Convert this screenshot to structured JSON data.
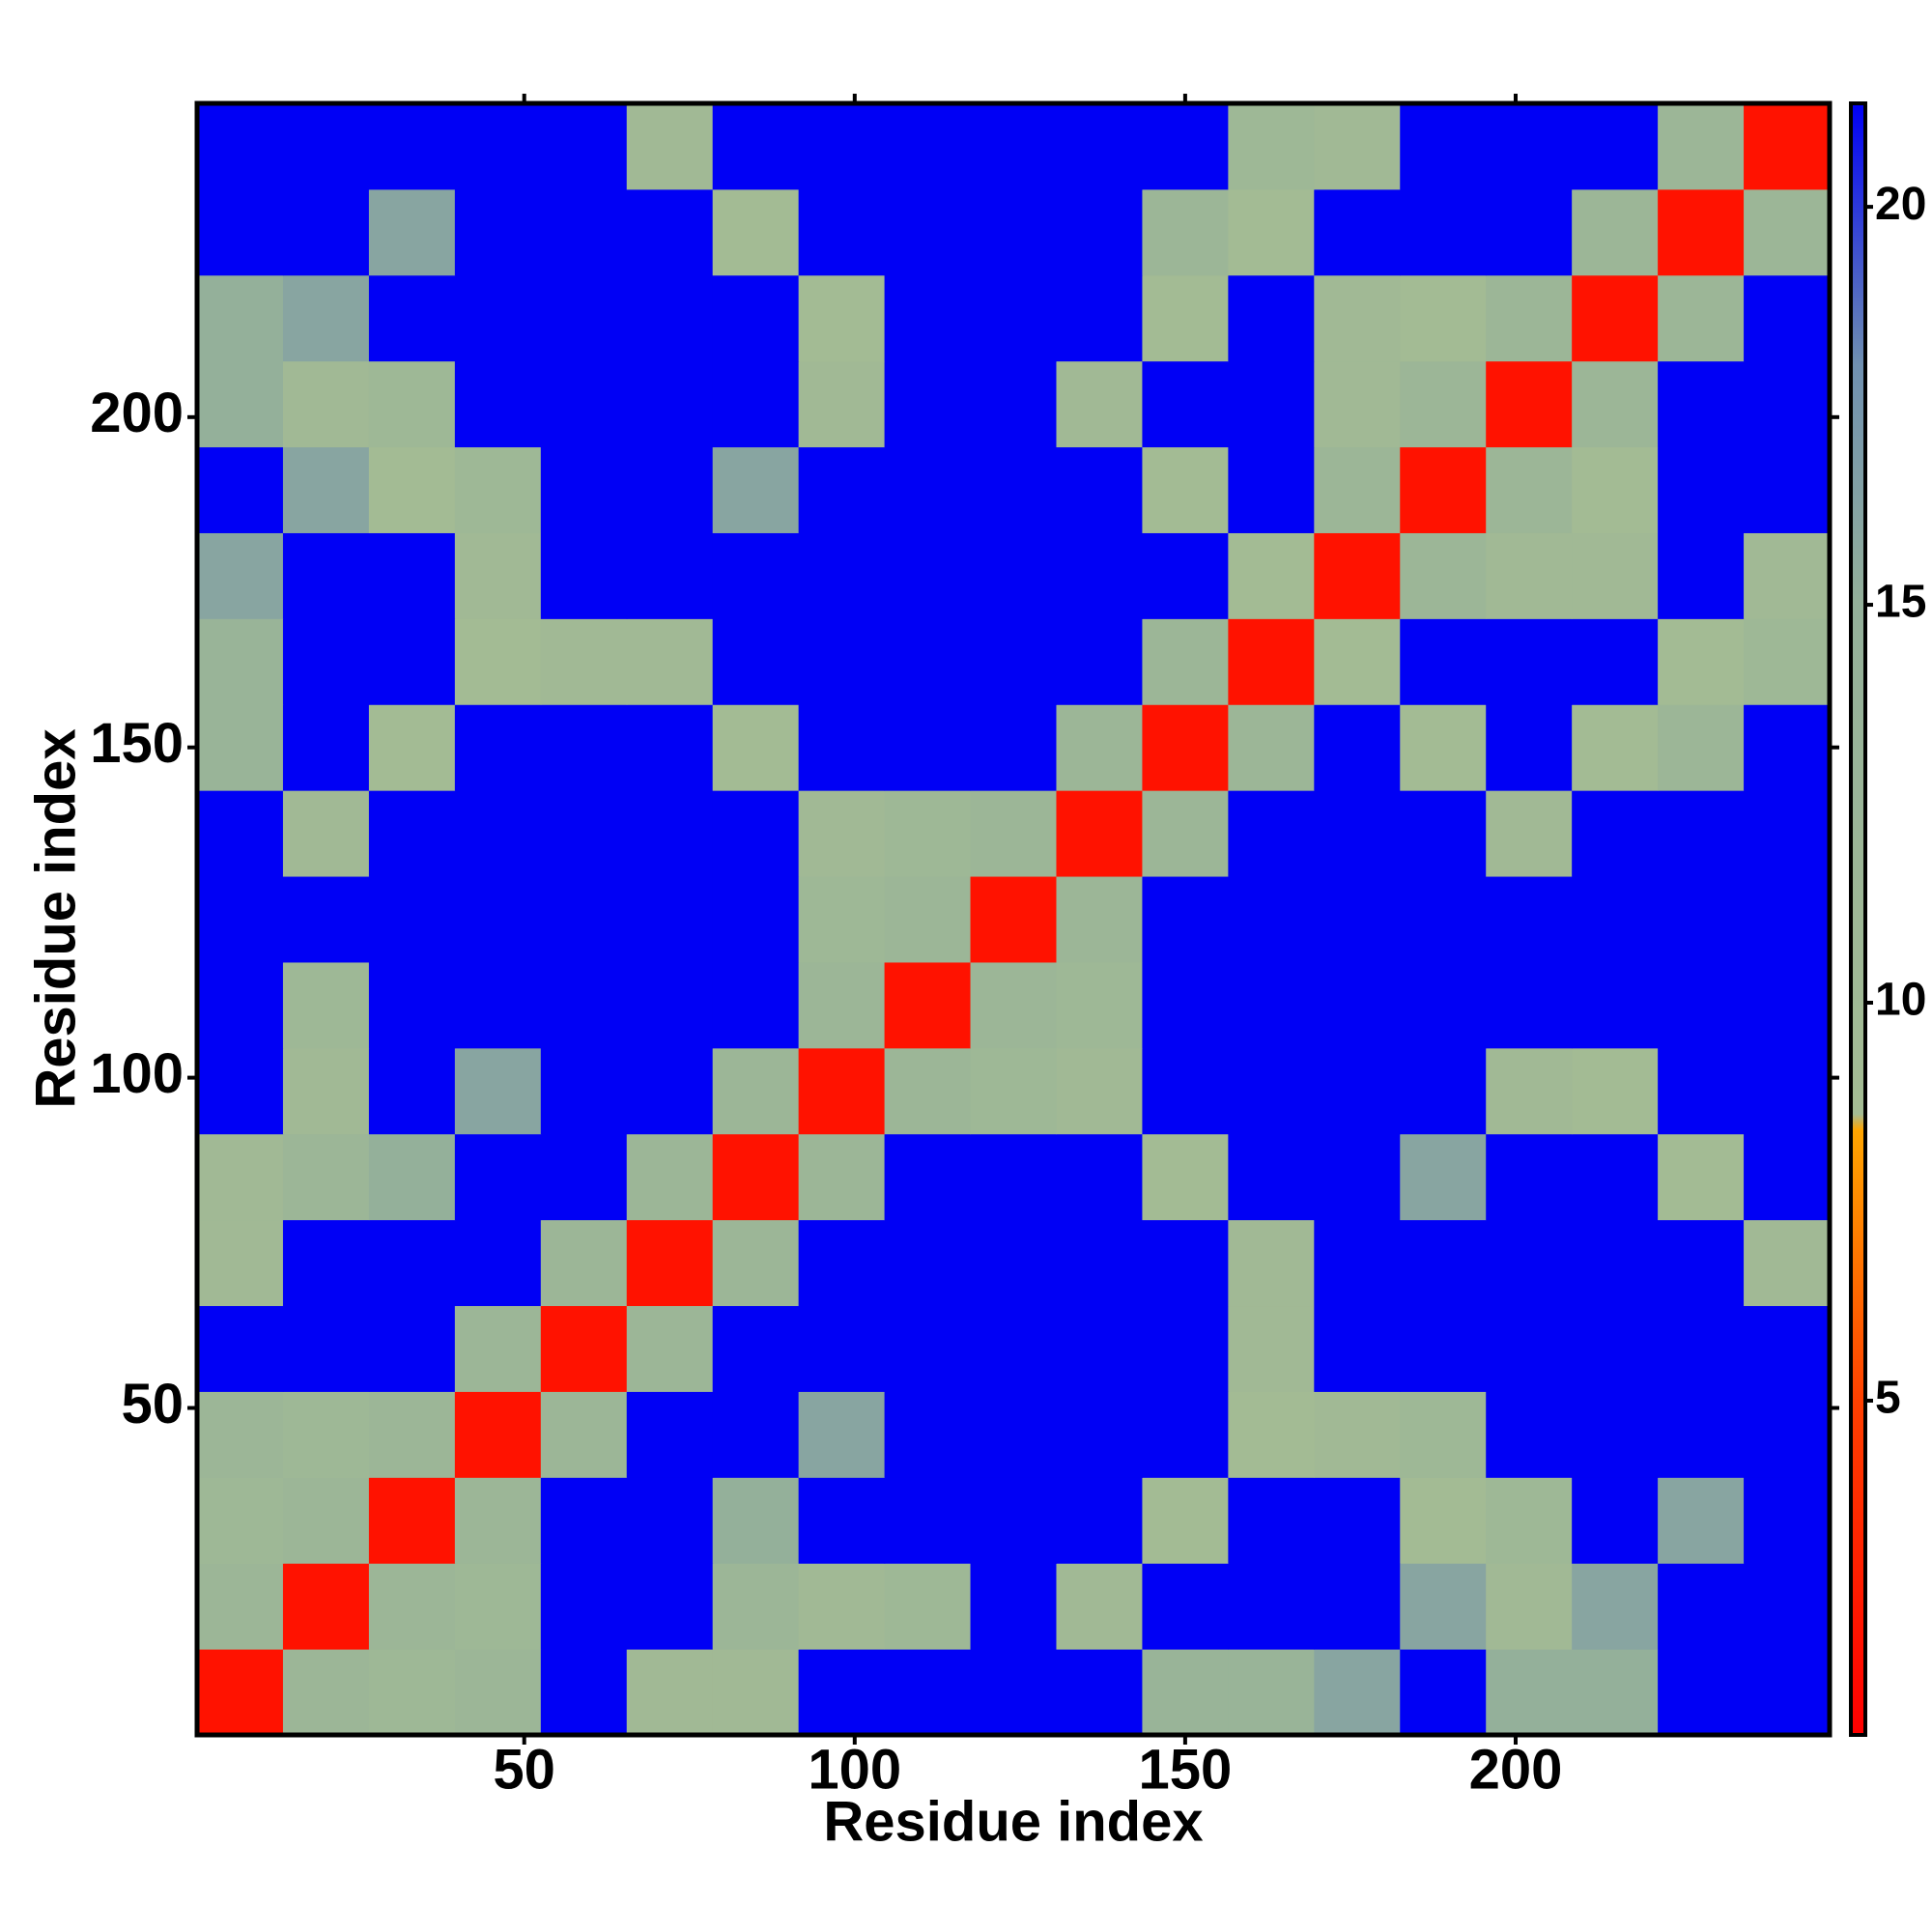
{
  "chart_data": {
    "type": "heatmap",
    "x_label": "Residue index",
    "y_label": "Residue index",
    "x": [
      7,
      20,
      33,
      46,
      59,
      72,
      85,
      98,
      111,
      124,
      137,
      150,
      163,
      176,
      189,
      202,
      215,
      228,
      241
    ],
    "y": [
      7,
      20,
      33,
      46,
      59,
      72,
      85,
      98,
      111,
      124,
      137,
      150,
      163,
      176,
      189,
      202,
      215,
      228,
      241
    ],
    "values": [
      [
        2,
        12,
        11,
        12,
        25,
        10,
        10,
        25,
        25,
        25,
        25,
        13,
        13,
        16,
        25,
        15,
        15,
        25,
        25
      ],
      [
        12,
        2,
        12,
        11,
        25,
        25,
        12,
        10,
        11,
        25,
        10,
        25,
        25,
        25,
        16,
        10,
        16,
        25,
        25
      ],
      [
        11,
        12,
        2,
        12,
        25,
        25,
        15,
        25,
        25,
        25,
        25,
        9,
        25,
        25,
        9,
        11,
        25,
        16,
        25
      ],
      [
        12,
        11,
        12,
        2,
        12,
        25,
        25,
        16,
        25,
        25,
        25,
        25,
        9,
        10,
        11,
        25,
        25,
        25,
        25
      ],
      [
        25,
        25,
        25,
        12,
        2,
        12,
        25,
        25,
        25,
        25,
        25,
        25,
        10,
        25,
        25,
        25,
        25,
        25,
        25
      ],
      [
        10,
        25,
        25,
        25,
        12,
        2,
        12,
        25,
        25,
        25,
        25,
        25,
        10,
        25,
        25,
        25,
        25,
        25,
        10
      ],
      [
        10,
        12,
        15,
        25,
        25,
        12,
        2,
        12,
        25,
        25,
        25,
        9,
        25,
        25,
        16,
        25,
        25,
        9,
        25
      ],
      [
        25,
        10,
        25,
        16,
        25,
        25,
        12,
        2,
        12,
        11,
        10,
        25,
        25,
        25,
        25,
        10,
        9,
        25,
        25
      ],
      [
        25,
        11,
        25,
        25,
        25,
        25,
        25,
        12,
        2,
        12,
        11,
        25,
        25,
        25,
        25,
        25,
        25,
        25,
        25
      ],
      [
        25,
        25,
        25,
        25,
        25,
        25,
        25,
        11,
        12,
        2,
        12,
        25,
        25,
        25,
        25,
        25,
        25,
        25,
        25
      ],
      [
        25,
        10,
        25,
        25,
        25,
        25,
        25,
        10,
        11,
        12,
        2,
        12,
        25,
        25,
        25,
        10,
        25,
        25,
        25
      ],
      [
        13,
        25,
        9,
        25,
        25,
        25,
        9,
        25,
        25,
        25,
        12,
        2,
        12,
        25,
        9,
        25,
        9,
        12,
        25
      ],
      [
        13,
        25,
        25,
        9,
        10,
        10,
        25,
        25,
        25,
        25,
        25,
        12,
        2,
        9,
        25,
        25,
        25,
        9,
        11
      ],
      [
        16,
        25,
        25,
        10,
        25,
        25,
        25,
        25,
        25,
        25,
        25,
        25,
        9,
        2,
        12,
        10,
        10,
        25,
        10
      ],
      [
        25,
        16,
        9,
        11,
        25,
        25,
        16,
        25,
        25,
        25,
        25,
        9,
        25,
        12,
        2,
        12,
        9,
        25,
        25
      ],
      [
        15,
        10,
        11,
        25,
        25,
        25,
        25,
        10,
        25,
        25,
        10,
        25,
        25,
        10,
        12,
        2,
        12,
        25,
        25
      ],
      [
        15,
        16,
        25,
        25,
        25,
        25,
        25,
        9,
        25,
        25,
        25,
        9,
        25,
        10,
        9,
        12,
        2,
        12,
        25
      ],
      [
        25,
        25,
        16,
        25,
        25,
        25,
        9,
        25,
        25,
        25,
        25,
        12,
        9,
        25,
        25,
        25,
        12,
        2,
        12
      ],
      [
        25,
        25,
        25,
        25,
        25,
        10,
        25,
        25,
        25,
        25,
        25,
        25,
        11,
        10,
        25,
        25,
        25,
        12,
        2
      ]
    ],
    "xlim": [
      0.5,
      247.5
    ],
    "ylim": [
      0.5,
      247.5
    ],
    "xticks": [
      50,
      100,
      150,
      200
    ],
    "yticks": [
      50,
      100,
      150,
      200
    ],
    "clim": [
      0.8,
      21.3
    ],
    "cticks": [
      5,
      10,
      15,
      20
    ],
    "colorscale": [
      [
        0.8,
        "#ff0000"
      ],
      [
        5,
        "#ff4000"
      ],
      [
        8.4,
        "#ffa500"
      ],
      [
        8.6,
        "#a4bc94"
      ],
      [
        15,
        "#94b09a"
      ],
      [
        18,
        "#7090b0"
      ],
      [
        21.3,
        "#0000f5"
      ]
    ]
  }
}
